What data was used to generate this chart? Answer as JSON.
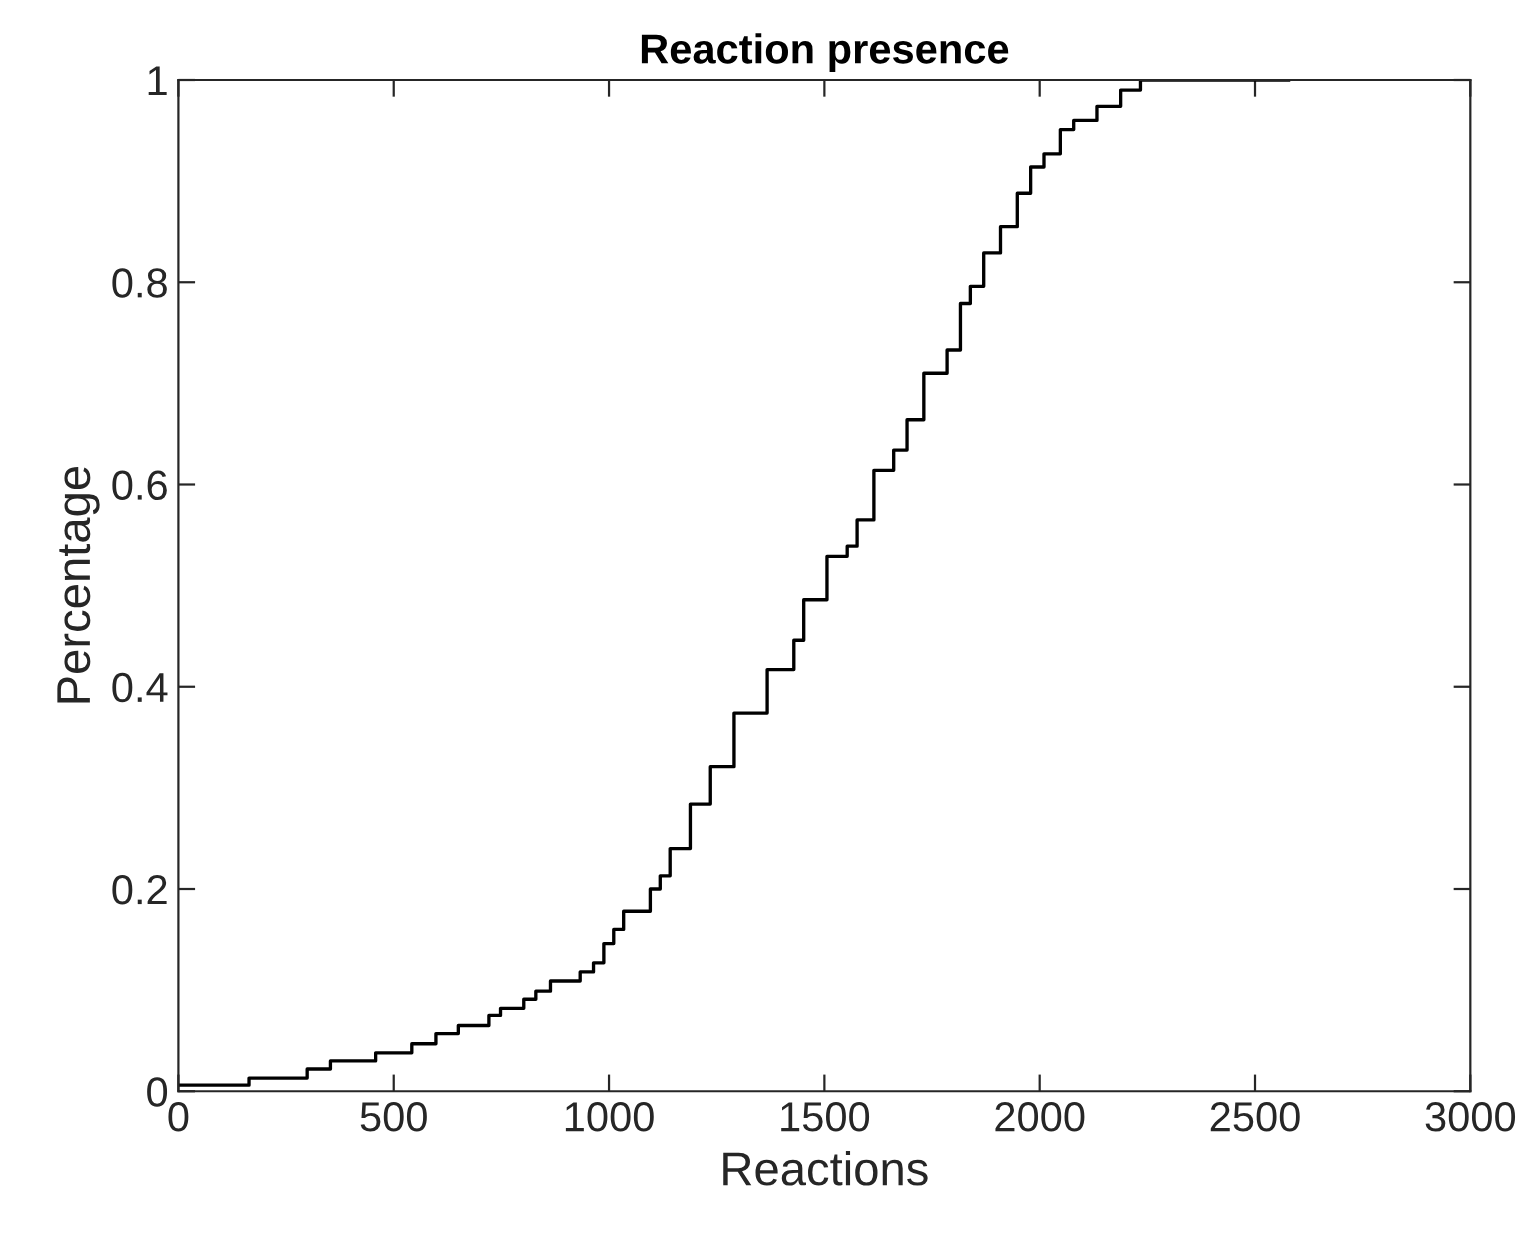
{
  "chart_data": {
    "type": "step",
    "title": "Reaction presence",
    "xlabel": "Reactions",
    "ylabel": "Percentage",
    "x": [
      0,
      164,
      299,
      353,
      458,
      542,
      598,
      650,
      721,
      748,
      802,
      830,
      864,
      933,
      964,
      988,
      1011,
      1034,
      1096,
      1119,
      1142,
      1189,
      1235,
      1290,
      1367,
      1429,
      1452,
      1506,
      1553,
      1576,
      1615,
      1661,
      1692,
      1731,
      1785,
      1816,
      1839,
      1870,
      1909,
      1948,
      1979,
      2010,
      2048,
      2079,
      2133,
      2188,
      2234,
      2578
    ],
    "series": [
      {
        "color": "#000000",
        "values": [
          0.006,
          0.013,
          0.022,
          0.03,
          0.038,
          0.047,
          0.057,
          0.065,
          0.075,
          0.082,
          0.091,
          0.099,
          0.109,
          0.118,
          0.127,
          0.146,
          0.16,
          0.178,
          0.2,
          0.213,
          0.24,
          0.284,
          0.321,
          0.374,
          0.417,
          0.446,
          0.486,
          0.529,
          0.539,
          0.565,
          0.614,
          0.634,
          0.664,
          0.71,
          0.733,
          0.779,
          0.796,
          0.829,
          0.855,
          0.888,
          0.914,
          0.927,
          0.951,
          0.96,
          0.974,
          0.99,
          1,
          1
        ]
      }
    ],
    "xlim": [
      0,
      3000
    ],
    "ylim": [
      0,
      1
    ],
    "xticks": [
      0,
      500,
      1000,
      1500,
      2000,
      2500,
      3000
    ],
    "yticks": [
      0,
      0.2,
      0.4,
      0.6,
      0.8,
      1
    ],
    "grid": false
  }
}
